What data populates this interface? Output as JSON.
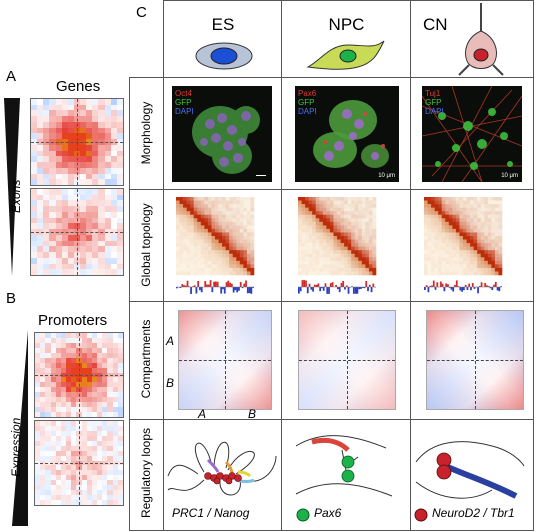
{
  "panel_a": {
    "letter": "A",
    "title": "Genes",
    "axis_label": "Exons"
  },
  "panel_b": {
    "letter": "B",
    "title": "Promoters",
    "axis_label": "Expression"
  },
  "panel_c": {
    "letter": "C",
    "columns": [
      "ES",
      "NPC",
      "CN"
    ],
    "rows": [
      "Morphology",
      "Global topology",
      "Compartments",
      "Regulatory loops"
    ],
    "morphology": [
      {
        "marker": "Oct4",
        "marker_color": "#e03a3a",
        "gfp": "GFP",
        "dapi": "DAPI",
        "scale": ""
      },
      {
        "marker": "Pax6",
        "marker_color": "#e03a3a",
        "gfp": "GFP",
        "dapi": "DAPI",
        "scale": "10 μm"
      },
      {
        "marker": "Tuj1",
        "marker_color": "#e03a3a",
        "gfp": "GFP",
        "dapi": "DAPI",
        "scale": "10 μm"
      }
    ],
    "compartment_axes": {
      "row_top": "A",
      "row_bottom": "B",
      "col_left": "A",
      "col_right": "B"
    },
    "loop_captions": [
      "PRC1 / Nanog",
      "Pax6",
      "NeuroD2 / Tbr1"
    ]
  },
  "colors": {
    "green_dot": "#1bb24a",
    "red_dot": "#c8232c",
    "blue_dot": "#1a4fd6"
  }
}
